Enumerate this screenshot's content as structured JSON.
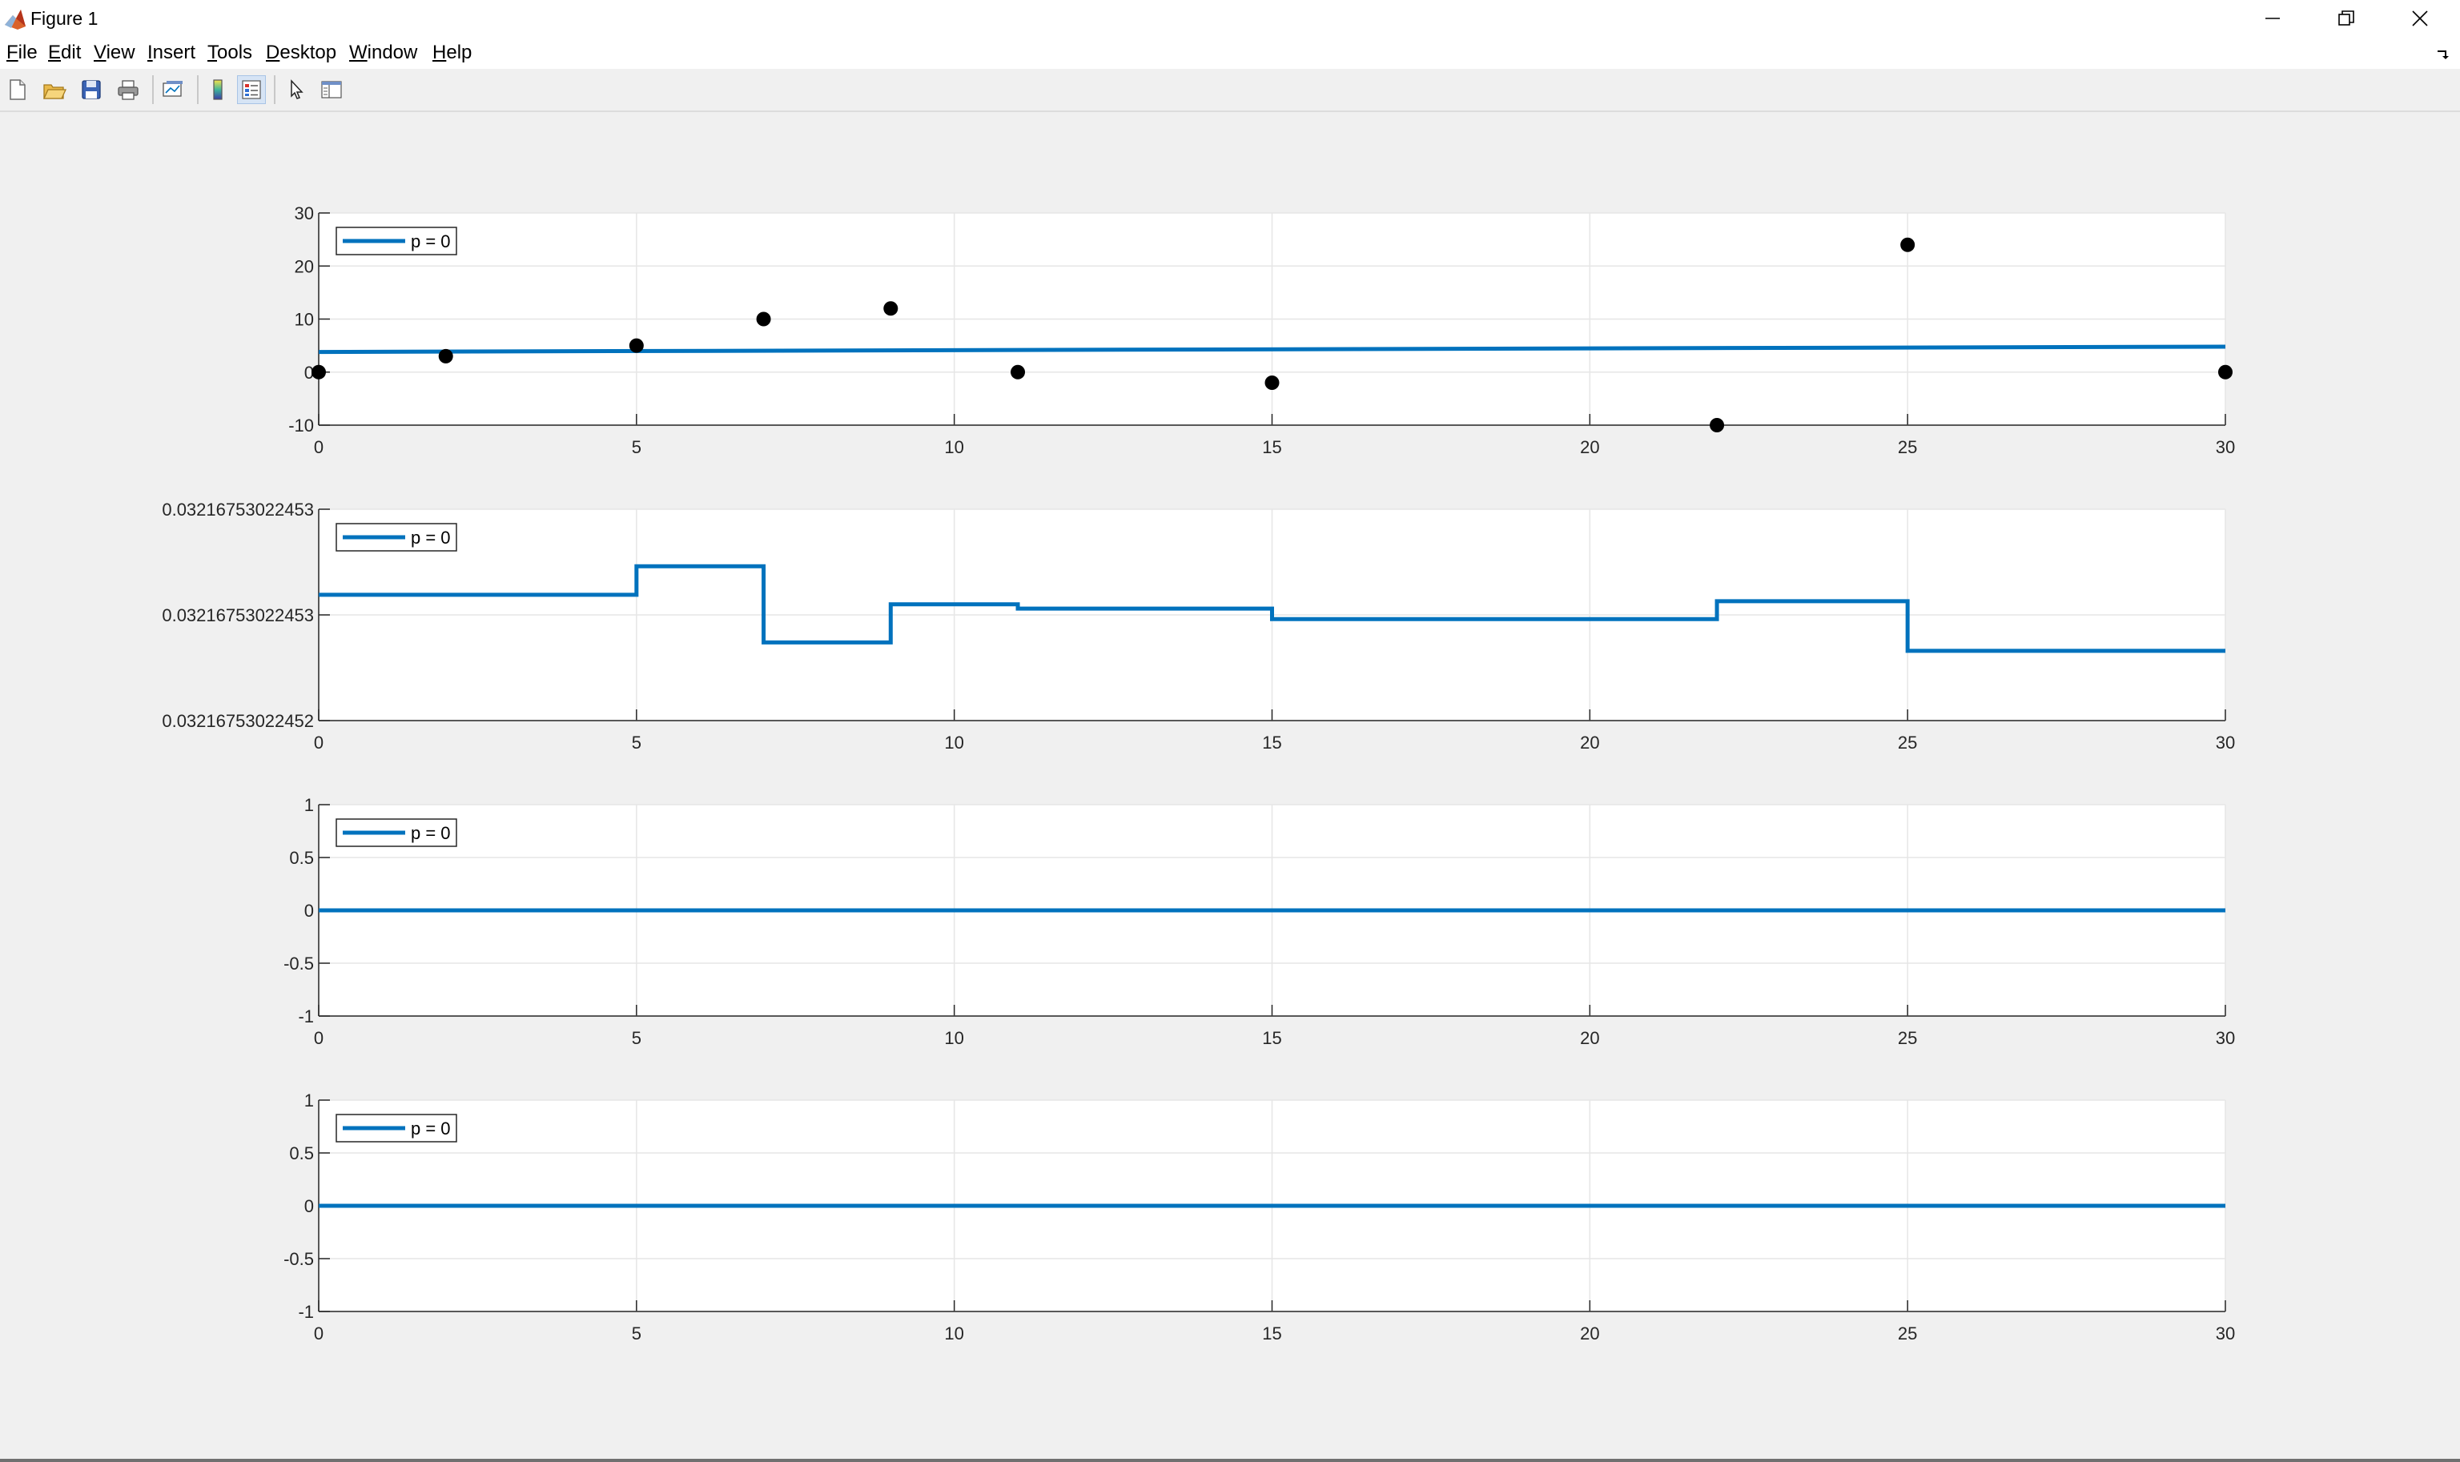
{
  "window": {
    "title": "Figure 1",
    "icon": "matlab-icon",
    "controls": [
      "minimize-icon",
      "restore-icon",
      "close-icon"
    ]
  },
  "menu": [
    {
      "label": "File",
      "key": "F"
    },
    {
      "label": "Edit",
      "key": "E"
    },
    {
      "label": "View",
      "key": "V"
    },
    {
      "label": "Insert",
      "key": "I"
    },
    {
      "label": "Tools",
      "key": "T"
    },
    {
      "label": "Desktop",
      "key": "D"
    },
    {
      "label": "Window",
      "key": "W"
    },
    {
      "label": "Help",
      "key": "H"
    }
  ],
  "toolbar": [
    {
      "icon": "new-figure-icon"
    },
    {
      "icon": "open-file-icon"
    },
    {
      "icon": "save-icon"
    },
    {
      "icon": "print-icon"
    },
    {
      "icon": "link-plot-icon"
    },
    {
      "icon": "colorbar-icon"
    },
    {
      "icon": "legend-icon",
      "pressed": true
    },
    {
      "icon": "edit-plot-arrow-icon"
    },
    {
      "icon": "property-inspector-icon"
    }
  ],
  "colors": {
    "series": "#0072bd",
    "markers": "#000000",
    "grid": "#e6e6e6",
    "axis": "#262626",
    "figure_bg": "#f0f0f0"
  },
  "chart_data": [
    {
      "type": "line",
      "xlim": [
        0,
        30
      ],
      "ylim": [
        -10,
        30
      ],
      "xticks": [
        "0",
        "5",
        "10",
        "15",
        "20",
        "25",
        "30"
      ],
      "yticks": [
        "-10",
        "0",
        "10",
        "20",
        "30"
      ],
      "grid": true,
      "legend": {
        "position": "top-left",
        "entries": [
          "p = 0"
        ]
      },
      "series": [
        {
          "name": "p = 0",
          "style": "line",
          "x": [
            0,
            30
          ],
          "y": [
            3.8,
            4.8
          ]
        },
        {
          "style": "markers",
          "x": [
            0,
            2,
            5,
            7,
            9,
            11,
            15,
            22,
            25,
            30
          ],
          "y": [
            0,
            3,
            5,
            10,
            12,
            0,
            -2,
            -10,
            24,
            0
          ]
        }
      ]
    },
    {
      "type": "line",
      "xlim": [
        0,
        30
      ],
      "ylim": [
        0,
        1
      ],
      "yticks_at": [
        0,
        0.5,
        1
      ],
      "yticks": [
        "0.032167530224520",
        "0.032167530224530",
        "0.032167530224530"
      ],
      "ytick_labels": [
        "0.03216753022452",
        "0.03216753022453",
        "0.03216753022453"
      ],
      "xticks": [
        "0",
        "5",
        "10",
        "15",
        "20",
        "25",
        "30"
      ],
      "grid": true,
      "legend": {
        "position": "top-left",
        "entries": [
          "p = 0"
        ]
      },
      "series": [
        {
          "name": "p = 0",
          "style": "stairs",
          "x": [
            0,
            5,
            7,
            9,
            11,
            15,
            22,
            25,
            30
          ],
          "y": [
            0.595,
            0.73,
            0.37,
            0.55,
            0.53,
            0.48,
            0.565,
            0.33,
            0.33
          ]
        }
      ]
    },
    {
      "type": "line",
      "xlim": [
        0,
        30
      ],
      "ylim": [
        -1,
        1
      ],
      "xticks": [
        "0",
        "5",
        "10",
        "15",
        "20",
        "25",
        "30"
      ],
      "yticks": [
        "-1",
        "-0.5",
        "0",
        "0.5",
        "1"
      ],
      "grid": true,
      "legend": {
        "position": "top-left",
        "entries": [
          "p = 0"
        ]
      },
      "series": [
        {
          "name": "p = 0",
          "style": "line",
          "x": [
            0,
            30
          ],
          "y": [
            0,
            0
          ]
        }
      ]
    },
    {
      "type": "line",
      "xlim": [
        0,
        30
      ],
      "ylim": [
        -1,
        1
      ],
      "xticks": [
        "0",
        "5",
        "10",
        "15",
        "20",
        "25",
        "30"
      ],
      "yticks": [
        "-1",
        "-0.5",
        "0",
        "0.5",
        "1"
      ],
      "grid": true,
      "legend": {
        "position": "top-left",
        "entries": [
          "p = 0"
        ]
      },
      "series": [
        {
          "name": "p = 0",
          "style": "line",
          "x": [
            0,
            30
          ],
          "y": [
            0,
            0
          ]
        }
      ]
    }
  ]
}
